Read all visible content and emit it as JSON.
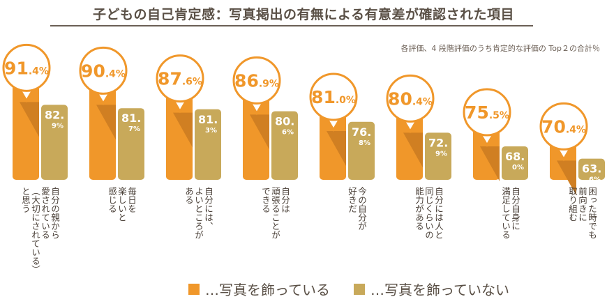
{
  "chart_data": {
    "type": "bar",
    "title": "子どもの自己肯定感：写真掲出の有無による有意差が確認された項目",
    "note": "各評価、4 段階評価のうち肯定的な評価の Top２の合計％",
    "categories": [
      [
        "自分の親から",
        "愛されている",
        "（大切にされている）",
        "と思う"
      ],
      [
        "毎日を",
        "楽しいと",
        "感じる"
      ],
      [
        "自分には、",
        "よいところが",
        "ある"
      ],
      [
        "自分は",
        "頑張ることが",
        "できる"
      ],
      [
        "今の自分が",
        "好きだ"
      ],
      [
        "自分には人と",
        "同じくらいの",
        "能力がある"
      ],
      [
        "自分自身に",
        "満足している"
      ],
      [
        "困った時でも",
        "前向きに",
        "取り組む"
      ]
    ],
    "series": [
      {
        "name": "…写真を飾っている",
        "color": "#f0972a",
        "values": [
          91.4,
          90.4,
          87.6,
          86.9,
          81.0,
          80.4,
          75.5,
          70.4
        ]
      },
      {
        "name": "…写真を飾っていない",
        "color": "#c8a95a",
        "values": [
          82.9,
          81.7,
          81.3,
          80.6,
          76.8,
          72.9,
          68.0,
          63.6
        ]
      }
    ],
    "unit": "%"
  }
}
